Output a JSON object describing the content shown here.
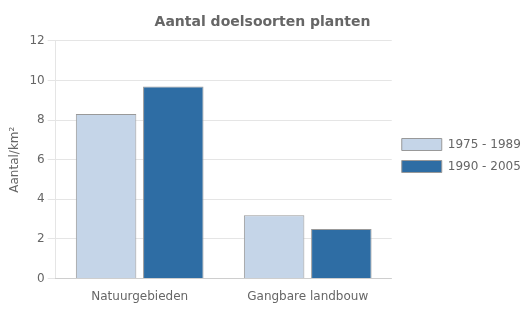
{
  "chart_data": {
    "type": "bar",
    "title": "Aantal doelsoorten planten",
    "ylabel": "Aantal/km²",
    "categories": [
      "Natuurgebieden",
      "Gangbare landbouw"
    ],
    "series": [
      {
        "name": "1975 - 1989",
        "color": "#c5d5e8",
        "values": [
          8.3,
          3.2
        ]
      },
      {
        "name": "1990 - 2005",
        "color": "#2e6da4",
        "values": [
          9.7,
          2.5
        ]
      }
    ],
    "ylim": [
      0,
      12
    ],
    "yticks": [
      0,
      2,
      4,
      6,
      8,
      10,
      12
    ],
    "grid": true,
    "legend": "right"
  }
}
